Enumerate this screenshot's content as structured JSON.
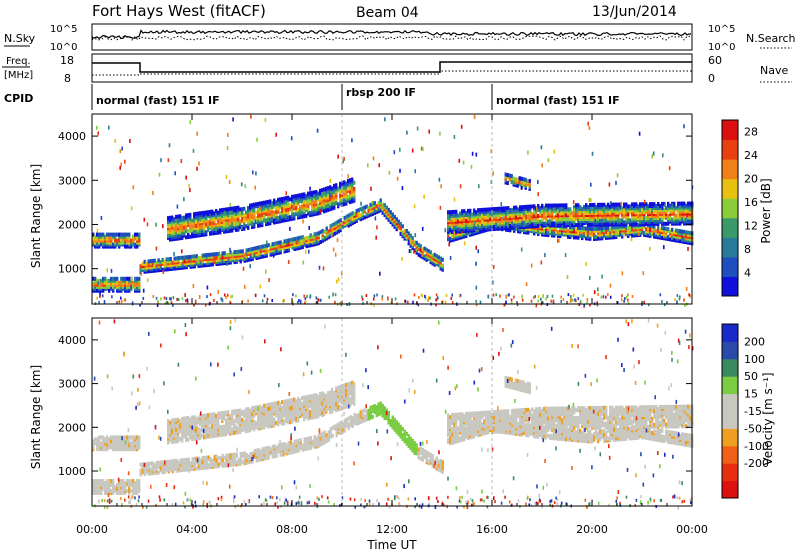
{
  "header": {
    "station": "Fort Hays West (fitACF)",
    "beam": "Beam 04",
    "date": "13/Jun/2014"
  },
  "nsky_panel": {
    "label": "N.Sky",
    "right_label": "N.Search",
    "ticks_left": [
      "10^5",
      "10^0"
    ],
    "ticks_right": [
      "10^5",
      "10^0"
    ]
  },
  "freq_panel": {
    "label_line1": "Freq.",
    "label_line2": "[MHz]",
    "right_label": "Nave",
    "ticks_left": [
      "18",
      "8"
    ],
    "ticks_right": [
      "60",
      "0"
    ]
  },
  "cpid_panel": {
    "label": "CPID",
    "modes": [
      {
        "label": "normal (fast) 151 IF",
        "start_hour": 0,
        "end_hour": 10
      },
      {
        "label": "rbsp 200 IF",
        "start_hour": 10,
        "end_hour": 16
      },
      {
        "label": "normal (fast) 151 IF",
        "start_hour": 16,
        "end_hour": 24
      }
    ]
  },
  "colors": {
    "power_scale": [
      "#1010dd",
      "#1f4fbf",
      "#2a7a9a",
      "#3a9a6a",
      "#8acc3a",
      "#e8c010",
      "#f08018",
      "#e84010",
      "#dd1010"
    ],
    "velocity_scale": [
      "#dd1010",
      "#e83010",
      "#f06018",
      "#f0a020",
      "#c8c8c0",
      "#c8c8c0",
      "#7acc40",
      "#3a8a60",
      "#2a4aaa",
      "#1a2ac8"
    ]
  },
  "chart_data": [
    {
      "type": "heatmap",
      "name": "power",
      "xlabel": "",
      "ylabel": "Slant Range [km]",
      "xlim": [
        0,
        24
      ],
      "ylim": [
        200,
        4500
      ],
      "x_ticks": [
        "00:00",
        "04:00",
        "08:00",
        "12:00",
        "16:00",
        "20:00",
        "00:00"
      ],
      "y_ticks": [
        1000,
        2000,
        3000,
        4000
      ],
      "colorbar_label": "Power [dB]",
      "colorbar_ticks": [
        4,
        8,
        12,
        16,
        20,
        24,
        28
      ],
      "colorbar_range": [
        0,
        30
      ]
    },
    {
      "type": "heatmap",
      "name": "velocity",
      "xlabel": "Time UT",
      "ylabel": "Slant Range [km]",
      "xlim": [
        0,
        24
      ],
      "ylim": [
        200,
        4500
      ],
      "x_ticks": [
        "00:00",
        "04:00",
        "08:00",
        "12:00",
        "16:00",
        "20:00",
        "00:00"
      ],
      "y_ticks": [
        1000,
        2000,
        3000,
        4000
      ],
      "colorbar_label": "Velocity [m s⁻¹]",
      "colorbar_ticks": [
        200,
        100,
        50,
        15,
        -15,
        -50,
        -100,
        -200
      ]
    }
  ],
  "echo_bands": [
    {
      "t": [
        0,
        1.9
      ],
      "r": [
        1650,
        1650
      ],
      "w": 300
    },
    {
      "t": [
        0,
        1.9
      ],
      "r": [
        650,
        650
      ],
      "w": 300
    },
    {
      "t": [
        1.9,
        6,
        9,
        10.5,
        11.5,
        13,
        14
      ],
      "r": [
        1050,
        1300,
        1700,
        2200,
        2450,
        1450,
        1100
      ],
      "w": 260
    },
    {
      "t": [
        3,
        6,
        9,
        10.5
      ],
      "r": [
        1900,
        2150,
        2500,
        2800
      ],
      "w": 500
    },
    {
      "t": [
        14.2,
        16,
        18,
        20,
        22,
        24
      ],
      "r": [
        1750,
        2050,
        1900,
        1800,
        1900,
        1700
      ],
      "w": 260
    },
    {
      "t": [
        14.2,
        18,
        24
      ],
      "r": [
        2050,
        2200,
        2250
      ],
      "w": 450
    },
    {
      "t": [
        16.5,
        17.5
      ],
      "r": [
        3050,
        2900
      ],
      "w": 200
    }
  ]
}
